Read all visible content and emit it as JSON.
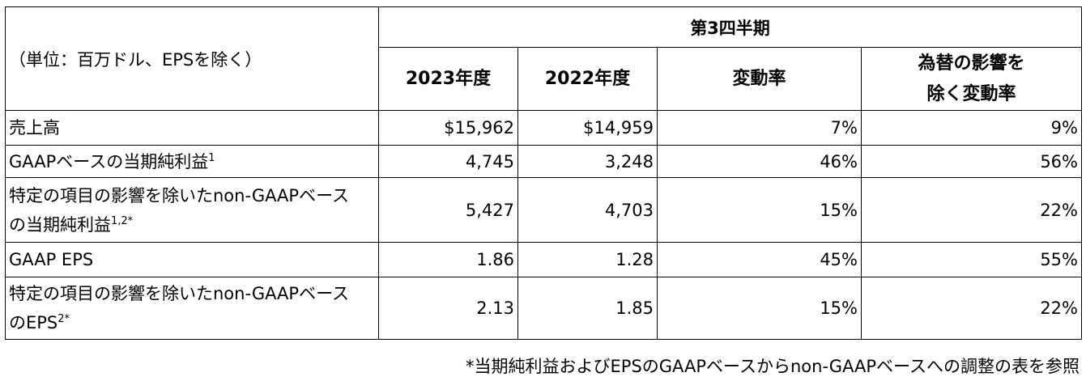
{
  "header": {
    "unit_label": "（単位：百万ドル、EPSを除く）",
    "period": "第3四半期",
    "columns": [
      {
        "line1": "2023年度",
        "line2": ""
      },
      {
        "line1": "2022年度",
        "line2": ""
      },
      {
        "line1": "変動率",
        "line2": ""
      },
      {
        "line1": "為替の影響を",
        "line2": "除く変動率"
      }
    ]
  },
  "rows": [
    {
      "label1": "売上高",
      "label1_sup": "",
      "label2": "",
      "label2_sup": "",
      "values": [
        "$15,962",
        "$14,959",
        "7%",
        "9%"
      ]
    },
    {
      "label1": "GAAPベースの当期純利益",
      "label1_sup": "1",
      "label2": "",
      "label2_sup": "",
      "values": [
        "4,745",
        "3,248",
        "46%",
        "56%"
      ]
    },
    {
      "label1": "特定の項目の影響を除いたnon-GAAPベース",
      "label1_sup": "",
      "label2": "の当期純利益",
      "label2_sup": "1,2*",
      "values": [
        "5,427",
        "4,703",
        "15%",
        "22%"
      ]
    },
    {
      "label1": "GAAP EPS",
      "label1_sup": "",
      "label2": "",
      "label2_sup": "",
      "values": [
        "1.86",
        "1.28",
        "45%",
        "55%"
      ]
    },
    {
      "label1": "特定の項目の影響を除いたnon-GAAPベース",
      "label1_sup": "",
      "label2": "のEPS",
      "label2_sup": "2*",
      "values": [
        "2.13",
        "1.85",
        "15%",
        "22%"
      ]
    }
  ],
  "footnote": "*当期純利益およびEPSのGAAPベースからnon-GAAPベースへの調整の表を参照"
}
